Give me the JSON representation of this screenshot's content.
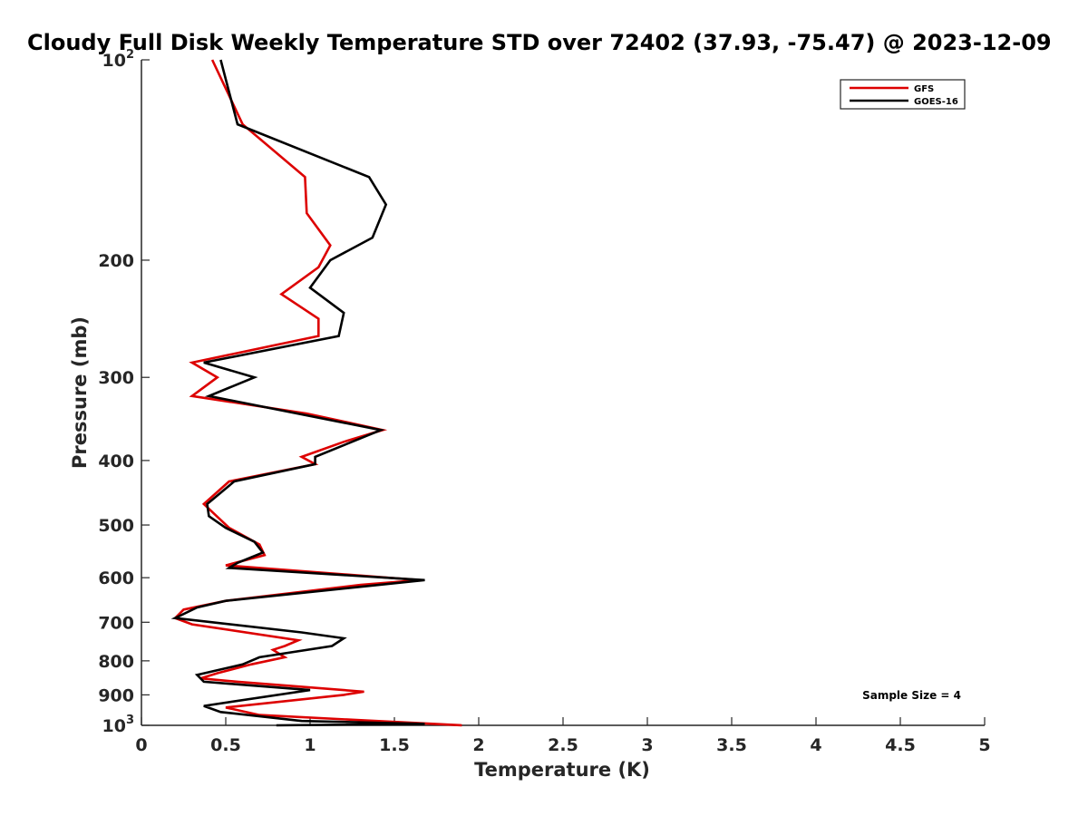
{
  "chart_data": {
    "type": "line",
    "title": "Cloudy Full Disk Weekly Temperature STD over 72402 (37.93, -75.47) @ 2023-12-09",
    "xlabel": "Temperature (K)",
    "ylabel": "Pressure (mb)",
    "xlim": [
      0,
      5
    ],
    "ylim": [
      100,
      1000
    ],
    "y_scale": "log",
    "y_reversed": true,
    "x_ticks": [
      0,
      0.5,
      1,
      1.5,
      2,
      2.5,
      3,
      3.5,
      4,
      4.5,
      5
    ],
    "x_tick_labels": [
      "0",
      "0.5",
      "1",
      "1.5",
      "2",
      "2.5",
      "3",
      "3.5",
      "4",
      "4.5",
      "5"
    ],
    "y_ticks": [
      100,
      200,
      300,
      400,
      500,
      600,
      700,
      800,
      900,
      1000
    ],
    "y_tick_labels": [
      {
        "base": "10",
        "exp": "2"
      },
      {
        "base": "200",
        "exp": ""
      },
      {
        "base": "300",
        "exp": ""
      },
      {
        "base": "400",
        "exp": ""
      },
      {
        "base": "500",
        "exp": ""
      },
      {
        "base": "600",
        "exp": ""
      },
      {
        "base": "700",
        "exp": ""
      },
      {
        "base": "800",
        "exp": ""
      },
      {
        "base": "900",
        "exp": ""
      },
      {
        "base": "10",
        "exp": "3"
      }
    ],
    "grid": false,
    "legend_position": "top-right",
    "annotation": "Sample Size = 4",
    "series": [
      {
        "name": "GFS",
        "color": "#dd0000",
        "points": [
          [
            0.42,
            100
          ],
          [
            0.6,
            125
          ],
          [
            0.97,
            150
          ],
          [
            0.98,
            170
          ],
          [
            1.12,
            190
          ],
          [
            1.05,
            205
          ],
          [
            0.83,
            225
          ],
          [
            1.05,
            245
          ],
          [
            1.05,
            260
          ],
          [
            0.3,
            285
          ],
          [
            0.45,
            300
          ],
          [
            0.3,
            320
          ],
          [
            0.98,
            340
          ],
          [
            1.43,
            360
          ],
          [
            1.2,
            375
          ],
          [
            0.95,
            395
          ],
          [
            1.03,
            405
          ],
          [
            0.52,
            430
          ],
          [
            0.37,
            465
          ],
          [
            0.52,
            505
          ],
          [
            0.7,
            535
          ],
          [
            0.73,
            555
          ],
          [
            0.5,
            575
          ],
          [
            1.65,
            605
          ],
          [
            1.3,
            615
          ],
          [
            0.5,
            650
          ],
          [
            0.25,
            670
          ],
          [
            0.2,
            690
          ],
          [
            0.3,
            705
          ],
          [
            0.93,
            745
          ],
          [
            0.85,
            760
          ],
          [
            0.78,
            770
          ],
          [
            0.85,
            790
          ],
          [
            0.65,
            810
          ],
          [
            0.45,
            835
          ],
          [
            0.35,
            850
          ],
          [
            0.57,
            860
          ],
          [
            1.32,
            890
          ],
          [
            1.2,
            900
          ],
          [
            0.5,
            940
          ],
          [
            0.7,
            965
          ],
          [
            1.9,
            1000
          ]
        ]
      },
      {
        "name": "GOES-16",
        "color": "#000000",
        "points": [
          [
            0.47,
            100
          ],
          [
            0.57,
            125
          ],
          [
            1.35,
            150
          ],
          [
            1.45,
            165
          ],
          [
            1.37,
            185
          ],
          [
            1.12,
            200
          ],
          [
            1.0,
            220
          ],
          [
            1.2,
            240
          ],
          [
            1.17,
            260
          ],
          [
            0.37,
            285
          ],
          [
            0.67,
            300
          ],
          [
            0.4,
            320
          ],
          [
            1.42,
            360
          ],
          [
            1.03,
            395
          ],
          [
            1.03,
            405
          ],
          [
            0.55,
            430
          ],
          [
            0.39,
            465
          ],
          [
            0.4,
            485
          ],
          [
            0.5,
            505
          ],
          [
            0.67,
            530
          ],
          [
            0.72,
            550
          ],
          [
            0.57,
            570
          ],
          [
            0.52,
            580
          ],
          [
            1.68,
            605
          ],
          [
            0.5,
            650
          ],
          [
            0.33,
            665
          ],
          [
            0.2,
            690
          ],
          [
            0.95,
            725
          ],
          [
            1.2,
            740
          ],
          [
            1.13,
            760
          ],
          [
            0.7,
            790
          ],
          [
            0.6,
            810
          ],
          [
            0.33,
            840
          ],
          [
            0.37,
            860
          ],
          [
            1.0,
            885
          ],
          [
            0.37,
            935
          ],
          [
            0.47,
            955
          ],
          [
            0.95,
            985
          ],
          [
            1.68,
            995
          ],
          [
            0.8,
            1000
          ]
        ]
      }
    ]
  }
}
